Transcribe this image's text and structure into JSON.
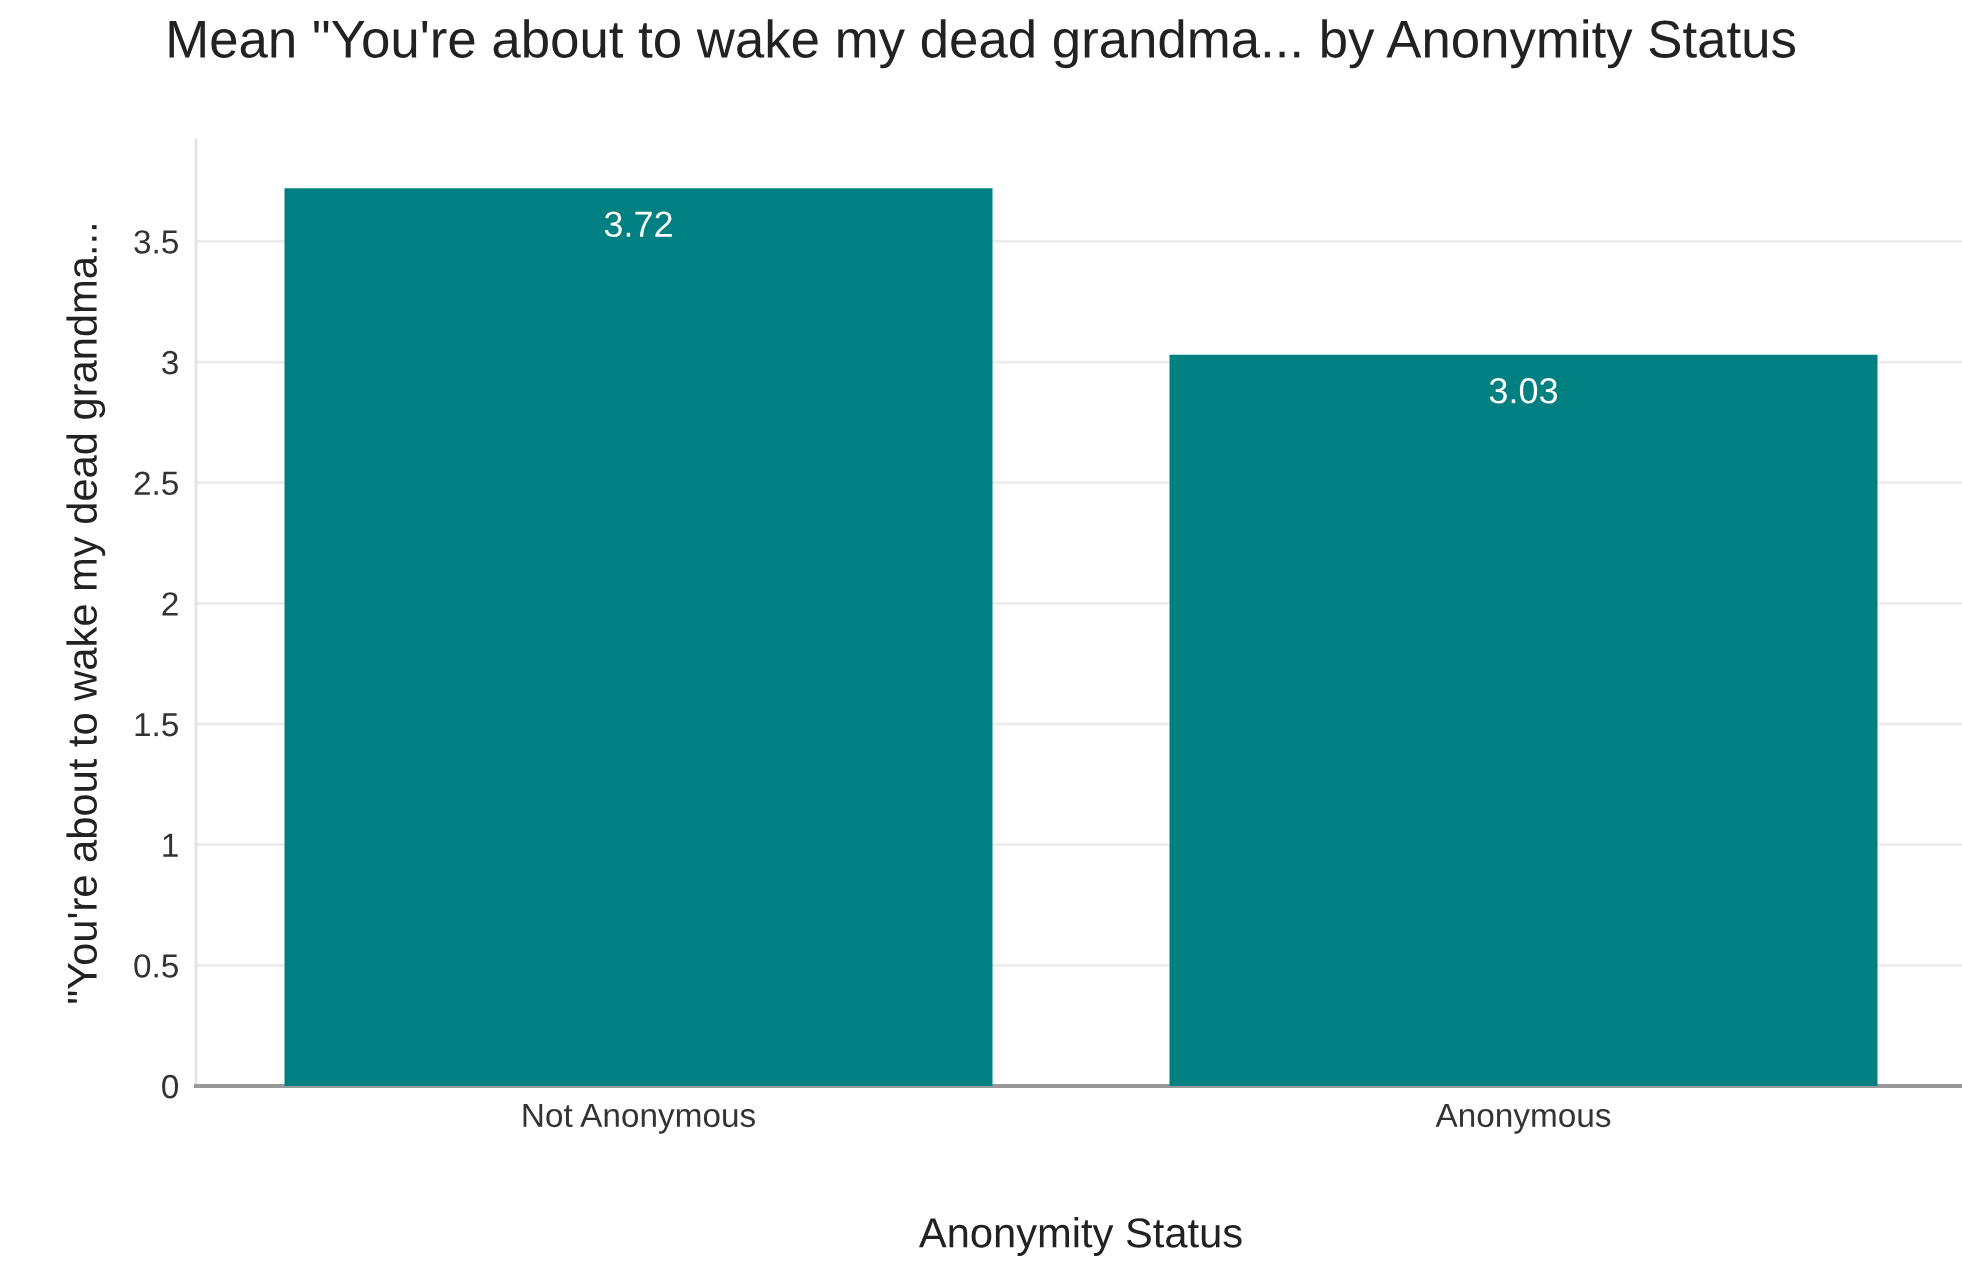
{
  "chart_data": {
    "type": "bar",
    "title": "Mean \"You're about to wake my dead grandma... by Anonymity Status",
    "xlabel": "Anonymity Status",
    "ylabel": "\"You're about to wake my dead grandma...",
    "categories": [
      "Not Anonymous",
      "Anonymous"
    ],
    "values": [
      3.72,
      3.03
    ],
    "color": "#008080",
    "ylim": [
      0,
      3.92
    ],
    "yticks": [
      0,
      0.5,
      1,
      1.5,
      2,
      2.5,
      3,
      3.5
    ],
    "grid": "y",
    "data_labels": true,
    "legend": false
  }
}
